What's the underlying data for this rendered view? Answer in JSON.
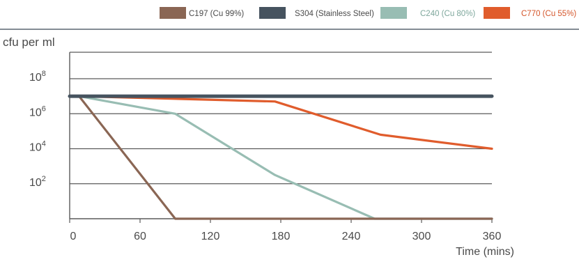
{
  "chart_data": {
    "type": "line",
    "title": "",
    "xlabel": "Time (mins)",
    "ylabel": "cfu per ml",
    "y_scale": "log10",
    "xlim": [
      0,
      360
    ],
    "ylim_exponent": [
      0,
      8
    ],
    "x_ticks": [
      "0",
      "60",
      "120",
      "180",
      "240",
      "300",
      "360"
    ],
    "y_ticks": [
      {
        "base": "10",
        "exp": "8",
        "value": 8
      },
      {
        "base": "10",
        "exp": "6",
        "value": 6
      },
      {
        "base": "10",
        "exp": "4",
        "value": 4
      },
      {
        "base": "10",
        "exp": "2",
        "value": 2
      }
    ],
    "grid": true,
    "legend_position": "top-right",
    "series": [
      {
        "name": "C197 (Cu 99%)",
        "color": "#8a6654",
        "x": [
          0,
          8,
          90,
          360
        ],
        "y_exponent": [
          7,
          7,
          0,
          0
        ]
      },
      {
        "name": "S304 (Stainless Steel)",
        "color": "#46535f",
        "x": [
          0,
          360
        ],
        "y_exponent": [
          7,
          7
        ]
      },
      {
        "name": "C240 (Cu 80%)",
        "color": "#98bdb3",
        "x": [
          0,
          8,
          90,
          175,
          260,
          360
        ],
        "y_exponent": [
          7,
          7,
          6,
          2.5,
          0,
          0
        ]
      },
      {
        "name": "C770 (Cu 55%)",
        "color": "#e05c2c",
        "x": [
          0,
          8,
          175,
          265,
          360
        ],
        "y_exponent": [
          7,
          7,
          6.7,
          4.8,
          4
        ]
      }
    ]
  }
}
